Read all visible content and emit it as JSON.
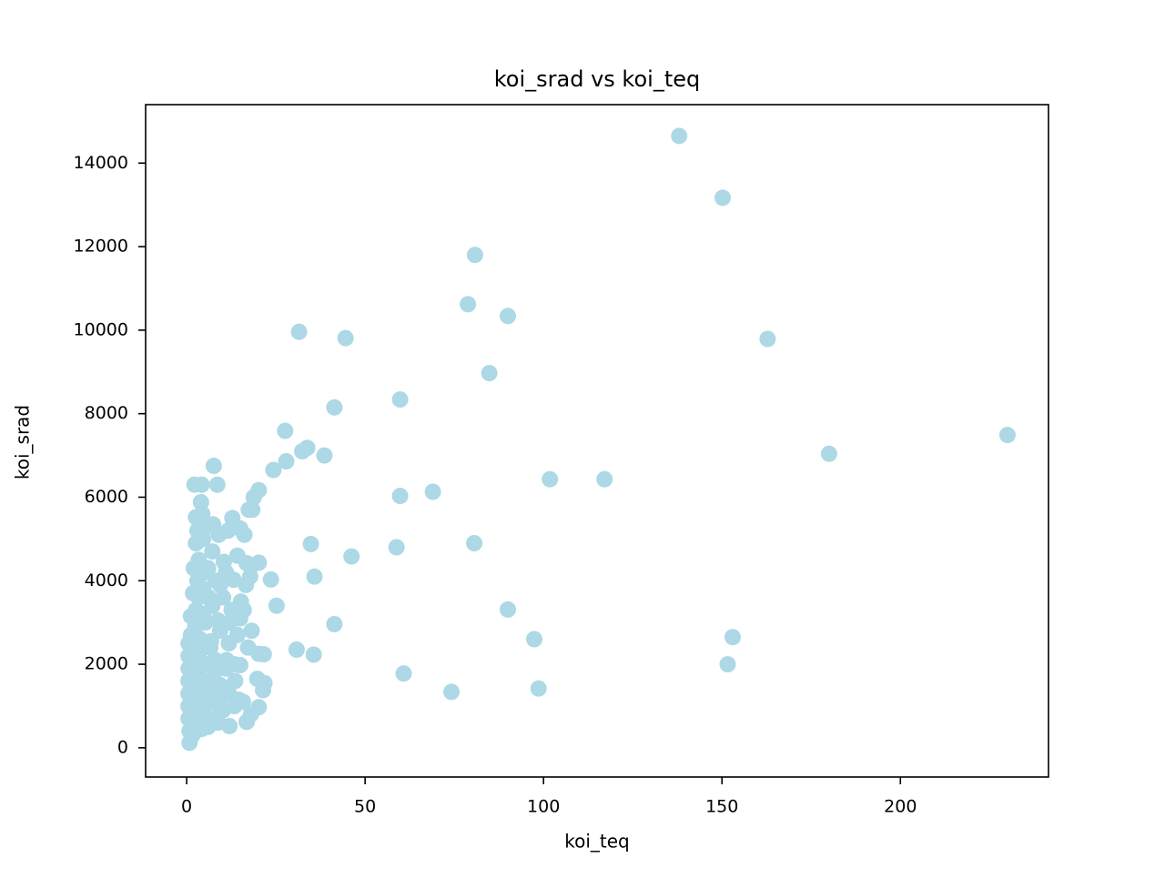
{
  "chart_data": {
    "type": "scatter",
    "title": "koi_srad vs koi_teq",
    "xlabel": "koi_teq",
    "ylabel": "koi_srad",
    "xlim": [
      -11.5,
      241.5
    ],
    "ylim": [
      -700,
      15400
    ],
    "xticks": [
      0,
      50,
      100,
      150,
      200
    ],
    "yticks": [
      0,
      2000,
      4000,
      6000,
      8000,
      10000,
      12000,
      14000
    ],
    "xtick_labels": [
      "0",
      "50",
      "100",
      "150",
      "200"
    ],
    "ytick_labels": [
      "0",
      "2000",
      "4000",
      "6000",
      "8000",
      "10000",
      "12000",
      "14000"
    ],
    "grid": false,
    "marker_color": "#add8e6",
    "series": [
      {
        "points": [
          [
            138,
            14650
          ],
          [
            150.2,
            13170
          ],
          [
            80.8,
            11800
          ],
          [
            78.8,
            10620
          ],
          [
            90,
            10340
          ],
          [
            31.5,
            9960
          ],
          [
            44.5,
            9810
          ],
          [
            162.8,
            9790
          ],
          [
            84.8,
            8970
          ],
          [
            59.8,
            8340
          ],
          [
            41.4,
            8150
          ],
          [
            27.6,
            7590
          ],
          [
            230,
            7490
          ],
          [
            33.8,
            7180
          ],
          [
            32.4,
            7100
          ],
          [
            180,
            7040
          ],
          [
            38.6,
            7000
          ],
          [
            27.9,
            6860
          ],
          [
            24.3,
            6650
          ],
          [
            7.6,
            6750
          ],
          [
            2.2,
            6300
          ],
          [
            4.2,
            6300
          ],
          [
            8.6,
            6300
          ],
          [
            101.8,
            6430
          ],
          [
            117.1,
            6430
          ],
          [
            69,
            6130
          ],
          [
            59.8,
            6030
          ],
          [
            20.2,
            6170
          ],
          [
            18.8,
            6000
          ],
          [
            4,
            5880
          ],
          [
            17.4,
            5700
          ],
          [
            18.4,
            5700
          ],
          [
            2.6,
            5520
          ],
          [
            12.8,
            5500
          ],
          [
            7.4,
            5350
          ],
          [
            15,
            5250
          ],
          [
            3,
            5200
          ],
          [
            16.2,
            5100
          ],
          [
            34.8,
            4880
          ],
          [
            80.6,
            4900
          ],
          [
            58.8,
            4800
          ],
          [
            2.6,
            4900
          ],
          [
            46.2,
            4580
          ],
          [
            20.2,
            4430
          ],
          [
            16.8,
            4420
          ],
          [
            10.4,
            4450
          ],
          [
            2,
            4300
          ],
          [
            18,
            4350
          ],
          [
            5,
            4200
          ],
          [
            35.8,
            4100
          ],
          [
            23.6,
            4030
          ],
          [
            17.8,
            4100
          ],
          [
            3,
            4000
          ],
          [
            13.2,
            4020
          ],
          [
            9.4,
            3900
          ],
          [
            1.8,
            3700
          ],
          [
            6.2,
            3600
          ],
          [
            15.2,
            3500
          ],
          [
            25.2,
            3400
          ],
          [
            90,
            3310
          ],
          [
            16,
            3300
          ],
          [
            4.6,
            3200
          ],
          [
            1.2,
            3150
          ],
          [
            8.8,
            3050
          ],
          [
            12,
            3000
          ],
          [
            41.4,
            2960
          ],
          [
            2.4,
            2900
          ],
          [
            18.2,
            2800
          ],
          [
            14.2,
            2700
          ],
          [
            153,
            2650
          ],
          [
            97.4,
            2600
          ],
          [
            6.8,
            2550
          ],
          [
            1,
            2500
          ],
          [
            30.8,
            2350
          ],
          [
            20.2,
            2250
          ],
          [
            21.6,
            2240
          ],
          [
            35.6,
            2230
          ],
          [
            3.4,
            2200
          ],
          [
            11.2,
            2100
          ],
          [
            15,
            1980
          ],
          [
            151.6,
            2000
          ],
          [
            1.6,
            1900
          ],
          [
            8.2,
            1850
          ],
          [
            60.8,
            1780
          ],
          [
            3.8,
            1700
          ],
          [
            19.8,
            1650
          ],
          [
            13.6,
            1600
          ],
          [
            21.8,
            1550
          ],
          [
            98.6,
            1420
          ],
          [
            21.4,
            1380
          ],
          [
            74.2,
            1340
          ],
          [
            5.4,
            1300
          ],
          [
            1.4,
            1200
          ],
          [
            14.6,
            1150
          ],
          [
            9,
            1050
          ],
          [
            20.2,
            970
          ],
          [
            2.8,
            900
          ],
          [
            18,
            800
          ],
          [
            7.2,
            700
          ],
          [
            16.8,
            620
          ],
          [
            12,
            520
          ],
          [
            4.2,
            450
          ],
          [
            0.8,
            400
          ],
          [
            1.6,
            300
          ],
          [
            0.8,
            120
          ],
          [
            0.5,
            700
          ],
          [
            0.5,
            1000
          ],
          [
            0.5,
            1300
          ],
          [
            0.5,
            1600
          ],
          [
            0.5,
            1900
          ],
          [
            0.5,
            2200
          ],
          [
            0.5,
            2500
          ],
          [
            1.2,
            1500
          ],
          [
            1.2,
            2000
          ],
          [
            1.2,
            2700
          ],
          [
            2.6,
            600
          ],
          [
            2.6,
            1100
          ],
          [
            2.6,
            1700
          ],
          [
            2.6,
            2300
          ],
          [
            2.6,
            3300
          ],
          [
            3.4,
            3600
          ],
          [
            3.4,
            4500
          ],
          [
            3.8,
            800
          ],
          [
            3.8,
            1400
          ],
          [
            3.8,
            2600
          ],
          [
            4.6,
            3800
          ],
          [
            4.6,
            5000
          ],
          [
            5.2,
            1000
          ],
          [
            5.2,
            2000
          ],
          [
            5.2,
            3000
          ],
          [
            6,
            4300
          ],
          [
            6,
            500
          ],
          [
            6.6,
            1600
          ],
          [
            6.6,
            2400
          ],
          [
            7.2,
            3400
          ],
          [
            7.2,
            4700
          ],
          [
            8,
            1200
          ],
          [
            8,
            2100
          ],
          [
            8,
            4000
          ],
          [
            8.8,
            600
          ],
          [
            9.4,
            1500
          ],
          [
            9.4,
            2800
          ],
          [
            10.2,
            3600
          ],
          [
            10.2,
            900
          ],
          [
            11,
            1900
          ],
          [
            11,
            4200
          ],
          [
            11.8,
            2500
          ],
          [
            11.8,
            1300
          ],
          [
            12.6,
            3300
          ],
          [
            13.4,
            1000
          ],
          [
            13.4,
            2000
          ],
          [
            14.2,
            4600
          ],
          [
            15,
            3100
          ],
          [
            15.8,
            1100
          ],
          [
            16.6,
            3900
          ],
          [
            17.2,
            2400
          ],
          [
            5.6,
            5300
          ],
          [
            9,
            5100
          ],
          [
            11.6,
            5200
          ],
          [
            4.4,
            5600
          ]
        ]
      }
    ]
  }
}
